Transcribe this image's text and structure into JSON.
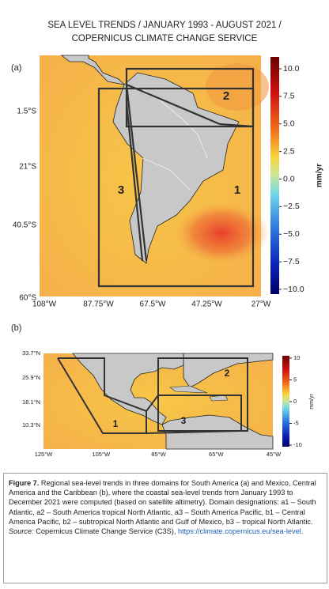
{
  "title": [
    "SEA LEVEL TRENDS / JANUARY 1993 - AUGUST 2021 /",
    "COPERNICUS CLIMATE CHANGE SERVICE"
  ],
  "panel_a": {
    "label": "(a)",
    "y_ticks": [
      "1.5°S",
      "21°S",
      "40.5°S",
      "60°S"
    ],
    "x_ticks": [
      "108°W",
      "87.75°W",
      "67.5°W",
      "47.25°W",
      "27°W"
    ],
    "domains": [
      "1",
      "2",
      "3"
    ],
    "colorbar_ticks": [
      "10.0",
      "7.5",
      "5.0",
      "2.5",
      "0.0",
      "−2.5",
      "−5.0",
      "−7.5",
      "−10.0"
    ],
    "colorbar_unit": "mm/yr"
  },
  "panel_b": {
    "label": "(b)",
    "y_ticks": [
      "33.7°N",
      "25.9°N",
      "18.1°N",
      "10.3°N"
    ],
    "x_ticks": [
      "125°W",
      "105°W",
      "85°W",
      "65°W",
      "45°W"
    ],
    "domains": [
      "1",
      "2",
      "3"
    ],
    "colorbar_ticks": [
      "10",
      "5",
      "0",
      "-5",
      "-10"
    ],
    "colorbar_unit": "mm/yr"
  },
  "caption": {
    "figure_label": "Figure 7.",
    "text": " Regional sea-level trends in three domains for South America (a) and Mexico, Central America and the Caribbean (b), where the coastal sea-level trends from January 1993 to December 2021 were computed (based on satellite altimetry). Domain designations: a1 – South Atlantic, a2 – South America tropical North Atlantic, a3 – South America Pacific, b1 – Central America Pacific, b2 – subtropical North Atlantic and Gulf of Mexico, b3 – tropical North Atlantic.",
    "source_label": "Source:",
    "source_text": " Copernicus Climate Change Service (C3S), ",
    "link": "https://climate.copernicus.eu/sea-level."
  }
}
